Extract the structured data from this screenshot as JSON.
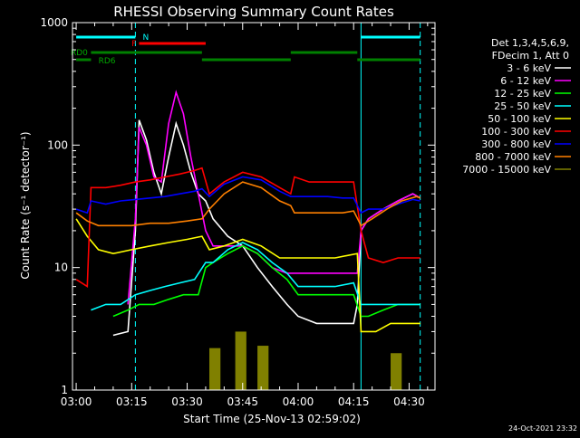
{
  "chart_data": {
    "type": "line",
    "title": "RHESSI Observing Summary Count Rates",
    "xlabel": "Start Time (25-Nov-13 02:59:02)",
    "ylabel": "Count Rate (s⁻¹ detector⁻¹)",
    "y_scale": "log",
    "ylim": [
      1,
      1000
    ],
    "xlim": [
      "02:59",
      "04:37"
    ],
    "x_ticks": [
      "03:00",
      "03:15",
      "03:30",
      "03:45",
      "04:00",
      "04:15",
      "04:30"
    ],
    "y_ticks": [
      "1",
      "10",
      "100",
      "1000"
    ],
    "legend_position": "right",
    "legend_header": [
      "Det 1,3,4,5,6,9,",
      "FDecim 1, Att 0"
    ],
    "timestamp": "24-Oct-2021 23:32",
    "vlines": [
      {
        "time": "03:16",
        "color": "#00ffff",
        "style": "dashed"
      },
      {
        "time": "04:17",
        "color": "#00ffff",
        "style": "solid"
      },
      {
        "time": "04:33",
        "color": "#00ffff",
        "style": "dashed"
      }
    ],
    "flag_bars": [
      {
        "label": "N",
        "color": "#00ffff",
        "segments": [
          [
            "03:00",
            "03:16"
          ],
          [
            "04:17",
            "04:33"
          ]
        ]
      },
      {
        "label": "F",
        "color": "#ff0000",
        "segments": [
          [
            "03:17",
            "03:35"
          ]
        ]
      },
      {
        "label": "RD0",
        "color": "#008000",
        "segments": [
          [
            "03:04",
            "03:34"
          ],
          [
            "03:58",
            "04:16"
          ]
        ]
      },
      {
        "label": "RD6",
        "color": "#008000",
        "segments": [
          [
            "03:00",
            "03:04"
          ],
          [
            "03:34",
            "03:58"
          ],
          [
            "04:16",
            "04:33"
          ]
        ]
      }
    ],
    "series": [
      {
        "name": "3 - 6 keV",
        "color": "#ffffff",
        "points": [
          [
            "03:10",
            2.8
          ],
          [
            "03:14",
            3
          ],
          [
            "03:16",
            20
          ],
          [
            "03:17",
            160
          ],
          [
            "03:19",
            110
          ],
          [
            "03:21",
            60
          ],
          [
            "03:23",
            40
          ],
          [
            "03:25",
            80
          ],
          [
            "03:27",
            150
          ],
          [
            "03:29",
            100
          ],
          [
            "03:31",
            60
          ],
          [
            "03:33",
            40
          ],
          [
            "03:35",
            35
          ],
          [
            "03:37",
            25
          ],
          [
            "03:41",
            18
          ],
          [
            "03:45",
            15
          ],
          [
            "03:49",
            10
          ],
          [
            "03:53",
            7
          ],
          [
            "03:57",
            5
          ],
          [
            "04:00",
            4
          ],
          [
            "04:05",
            3.5
          ],
          [
            "04:10",
            3.5
          ],
          [
            "04:13",
            3.5
          ],
          [
            "04:15",
            3.5
          ],
          [
            "04:16",
            5
          ],
          [
            "04:17",
            20
          ],
          [
            "04:19",
            25
          ],
          [
            "04:23",
            30
          ],
          [
            "04:27",
            35
          ],
          [
            "04:31",
            40
          ],
          [
            "04:33",
            37
          ]
        ]
      },
      {
        "name": "6 - 12 keV",
        "color": "#ff00ff",
        "points": [
          [
            "03:14",
            5
          ],
          [
            "03:16",
            25
          ],
          [
            "03:17",
            140
          ],
          [
            "03:19",
            100
          ],
          [
            "03:21",
            55
          ],
          [
            "03:23",
            50
          ],
          [
            "03:25",
            150
          ],
          [
            "03:27",
            270
          ],
          [
            "03:29",
            180
          ],
          [
            "03:31",
            80
          ],
          [
            "03:33",
            40
          ],
          [
            "03:35",
            20
          ],
          [
            "03:37",
            15
          ],
          [
            "03:41",
            15
          ],
          [
            "03:45",
            15
          ],
          [
            "03:49",
            13
          ],
          [
            "03:53",
            10
          ],
          [
            "03:57",
            9
          ],
          [
            "04:00",
            9
          ],
          [
            "04:05",
            9
          ],
          [
            "04:10",
            9
          ],
          [
            "04:13",
            9
          ],
          [
            "04:15",
            9
          ],
          [
            "04:16",
            9
          ],
          [
            "04:17",
            20
          ],
          [
            "04:19",
            25
          ],
          [
            "04:23",
            30
          ],
          [
            "04:27",
            35
          ],
          [
            "04:31",
            40
          ],
          [
            "04:33",
            37
          ]
        ]
      },
      {
        "name": "12 - 25 keV",
        "color": "#00ff00",
        "points": [
          [
            "03:10",
            4
          ],
          [
            "03:14",
            4.5
          ],
          [
            "03:17",
            5
          ],
          [
            "03:21",
            5
          ],
          [
            "03:25",
            5.5
          ],
          [
            "03:29",
            6
          ],
          [
            "03:33",
            6
          ],
          [
            "03:35",
            10
          ],
          [
            "03:37",
            11
          ],
          [
            "03:41",
            13
          ],
          [
            "03:45",
            15
          ],
          [
            "03:49",
            13
          ],
          [
            "03:53",
            10
          ],
          [
            "03:57",
            8
          ],
          [
            "04:00",
            6
          ],
          [
            "04:05",
            6
          ],
          [
            "04:10",
            6
          ],
          [
            "04:15",
            6
          ],
          [
            "04:17",
            4
          ],
          [
            "04:19",
            4
          ],
          [
            "04:23",
            4.5
          ],
          [
            "04:27",
            5
          ],
          [
            "04:31",
            5
          ],
          [
            "04:33",
            5
          ]
        ]
      },
      {
        "name": "25 - 50 keV",
        "color": "#00ffff",
        "points": [
          [
            "03:04",
            4.5
          ],
          [
            "03:08",
            5
          ],
          [
            "03:12",
            5
          ],
          [
            "03:16",
            6
          ],
          [
            "03:20",
            6.5
          ],
          [
            "03:24",
            7
          ],
          [
            "03:28",
            7.5
          ],
          [
            "03:32",
            8
          ],
          [
            "03:35",
            11
          ],
          [
            "03:37",
            11
          ],
          [
            "03:41",
            14
          ],
          [
            "03:45",
            16
          ],
          [
            "03:49",
            14
          ],
          [
            "03:53",
            11
          ],
          [
            "03:57",
            9
          ],
          [
            "04:00",
            7
          ],
          [
            "04:05",
            7
          ],
          [
            "04:10",
            7
          ],
          [
            "04:15",
            7.5
          ],
          [
            "04:17",
            5
          ],
          [
            "04:21",
            5
          ],
          [
            "04:25",
            5
          ],
          [
            "04:29",
            5
          ],
          [
            "04:33",
            5
          ]
        ]
      },
      {
        "name": "50 - 100 keV",
        "color": "#ffff00",
        "points": [
          [
            "03:00",
            25
          ],
          [
            "03:03",
            18
          ],
          [
            "03:06",
            14
          ],
          [
            "03:10",
            13
          ],
          [
            "03:15",
            14
          ],
          [
            "03:20",
            15
          ],
          [
            "03:25",
            16
          ],
          [
            "03:30",
            17
          ],
          [
            "03:34",
            18
          ],
          [
            "03:36",
            14
          ],
          [
            "03:40",
            15
          ],
          [
            "03:45",
            17
          ],
          [
            "03:50",
            15
          ],
          [
            "03:55",
            12
          ],
          [
            "04:00",
            12
          ],
          [
            "04:05",
            12
          ],
          [
            "04:10",
            12
          ],
          [
            "04:16",
            13
          ],
          [
            "04:17",
            3
          ],
          [
            "04:21",
            3
          ],
          [
            "04:25",
            3.5
          ],
          [
            "04:29",
            3.5
          ],
          [
            "04:33",
            3.5
          ]
        ]
      },
      {
        "name": "100 - 300 keV",
        "color": "#ff0000",
        "points": [
          [
            "03:00",
            8
          ],
          [
            "03:03",
            7
          ],
          [
            "03:04",
            45
          ],
          [
            "03:08",
            45
          ],
          [
            "03:12",
            47
          ],
          [
            "03:16",
            50
          ],
          [
            "03:20",
            52
          ],
          [
            "03:24",
            55
          ],
          [
            "03:28",
            58
          ],
          [
            "03:32",
            62
          ],
          [
            "03:34",
            65
          ],
          [
            "03:36",
            40
          ],
          [
            "03:40",
            50
          ],
          [
            "03:45",
            60
          ],
          [
            "03:50",
            55
          ],
          [
            "03:55",
            45
          ],
          [
            "03:58",
            40
          ],
          [
            "03:59",
            55
          ],
          [
            "04:03",
            50
          ],
          [
            "04:08",
            50
          ],
          [
            "04:12",
            50
          ],
          [
            "04:15",
            50
          ],
          [
            "04:17",
            20
          ],
          [
            "04:19",
            12
          ],
          [
            "04:23",
            11
          ],
          [
            "04:27",
            12
          ],
          [
            "04:31",
            12
          ],
          [
            "04:33",
            12
          ]
        ]
      },
      {
        "name": "300 - 800 keV",
        "color": "#0000ff",
        "points": [
          [
            "03:00",
            30
          ],
          [
            "03:03",
            28
          ],
          [
            "03:04",
            35
          ],
          [
            "03:08",
            33
          ],
          [
            "03:12",
            35
          ],
          [
            "03:16",
            36
          ],
          [
            "03:20",
            37
          ],
          [
            "03:24",
            38
          ],
          [
            "03:28",
            40
          ],
          [
            "03:32",
            42
          ],
          [
            "03:34",
            44
          ],
          [
            "03:36",
            38
          ],
          [
            "03:40",
            48
          ],
          [
            "03:45",
            55
          ],
          [
            "03:50",
            52
          ],
          [
            "03:55",
            42
          ],
          [
            "03:58",
            38
          ],
          [
            "03:59",
            38
          ],
          [
            "04:03",
            38
          ],
          [
            "04:08",
            38
          ],
          [
            "04:12",
            37
          ],
          [
            "04:15",
            37
          ],
          [
            "04:17",
            28
          ],
          [
            "04:19",
            30
          ],
          [
            "04:23",
            30
          ],
          [
            "04:27",
            33
          ],
          [
            "04:31",
            36
          ],
          [
            "04:33",
            35
          ]
        ]
      },
      {
        "name": "800 - 7000 keV",
        "color": "#ff8000",
        "points": [
          [
            "03:00",
            28
          ],
          [
            "03:03",
            24
          ],
          [
            "03:06",
            22
          ],
          [
            "03:10",
            22
          ],
          [
            "03:15",
            22
          ],
          [
            "03:20",
            23
          ],
          [
            "03:25",
            23
          ],
          [
            "03:30",
            24
          ],
          [
            "03:34",
            25
          ],
          [
            "03:36",
            30
          ],
          [
            "03:40",
            40
          ],
          [
            "03:45",
            50
          ],
          [
            "03:50",
            45
          ],
          [
            "03:55",
            35
          ],
          [
            "03:58",
            32
          ],
          [
            "03:59",
            28
          ],
          [
            "04:03",
            28
          ],
          [
            "04:08",
            28
          ],
          [
            "04:12",
            28
          ],
          [
            "04:15",
            29
          ],
          [
            "04:17",
            22
          ],
          [
            "04:20",
            25
          ],
          [
            "04:24",
            30
          ],
          [
            "04:28",
            35
          ],
          [
            "04:32",
            38
          ],
          [
            "04:33",
            37
          ]
        ]
      }
    ],
    "bands": [
      {
        "name": "7000 - 15000 keV",
        "color": "#808000",
        "segments": [
          [
            "03:36",
            1,
            2.2
          ],
          [
            "03:43",
            1,
            3
          ],
          [
            "03:49",
            1,
            2.3
          ],
          [
            "04:25",
            1,
            2
          ]
        ]
      }
    ]
  }
}
